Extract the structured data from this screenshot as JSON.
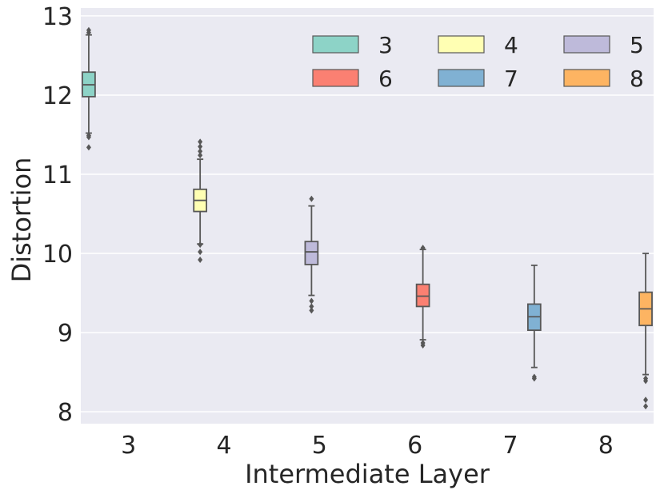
{
  "chart_data": {
    "type": "box",
    "xlabel": "Intermediate Layer",
    "ylabel": "Distortion",
    "ylim": [
      7.85,
      13.1
    ],
    "yticks": [
      8,
      9,
      10,
      11,
      12,
      13
    ],
    "grid": true,
    "legend_position": "top-right",
    "categories": [
      "3",
      "4",
      "5",
      "6",
      "7",
      "8"
    ],
    "series": [
      {
        "name": "3",
        "color": "#8dd3c7",
        "whisker_low": 11.52,
        "q1": 11.98,
        "median": 12.13,
        "q3": 12.29,
        "whisker_high": 12.76,
        "outliers": [
          11.34,
          11.47,
          11.49,
          12.79,
          12.82
        ]
      },
      {
        "name": "4",
        "color": "#ffffb3",
        "whisker_low": 10.12,
        "q1": 10.53,
        "median": 10.67,
        "q3": 10.81,
        "whisker_high": 11.19,
        "outliers": [
          9.92,
          10.02,
          10.11,
          11.24,
          11.29,
          11.35,
          11.41
        ]
      },
      {
        "name": "5",
        "color": "#bebada",
        "whisker_low": 9.47,
        "q1": 9.86,
        "median": 10.02,
        "q3": 10.15,
        "whisker_high": 10.6,
        "outliers": [
          9.28,
          9.33,
          9.4,
          10.69
        ]
      },
      {
        "name": "6",
        "color": "#fb8072",
        "whisker_low": 8.91,
        "q1": 9.33,
        "median": 9.46,
        "q3": 9.61,
        "whisker_high": 10.05,
        "outliers": [
          8.84,
          8.87,
          10.07
        ]
      },
      {
        "name": "7",
        "color": "#80b1d3",
        "whisker_low": 8.56,
        "q1": 9.03,
        "median": 9.2,
        "q3": 9.36,
        "whisker_high": 9.85,
        "outliers": [
          8.42,
          8.44
        ]
      },
      {
        "name": "8",
        "color": "#fdb462",
        "whisker_low": 8.47,
        "q1": 9.09,
        "median": 9.3,
        "q3": 9.51,
        "whisker_high": 10.0,
        "outliers": [
          8.07,
          8.15,
          8.39,
          8.42
        ]
      }
    ]
  }
}
